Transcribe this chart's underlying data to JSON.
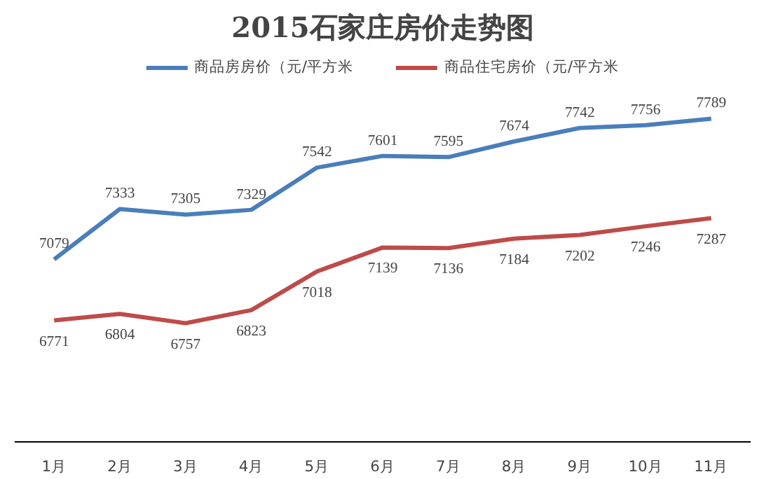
{
  "chart_data": {
    "type": "line",
    "title": "2015石家庄房价走势图",
    "categories": [
      "1月",
      "2月",
      "3月",
      "4月",
      "5月",
      "6月",
      "7月",
      "8月",
      "9月",
      "10月",
      "11月"
    ],
    "series": [
      {
        "name": "商品房房价（元/平方米",
        "color": "#4a7ebb",
        "values": [
          7079,
          7333,
          7305,
          7329,
          7542,
          7601,
          7595,
          7674,
          7742,
          7756,
          7789
        ]
      },
      {
        "name": "商品住宅房价（元/平方米",
        "color": "#be4b48",
        "values": [
          6771,
          6804,
          6757,
          6823,
          7018,
          7139,
          7136,
          7184,
          7202,
          7246,
          7287
        ]
      }
    ],
    "data_labels": true,
    "legend": "top",
    "grid": false,
    "marker": "none",
    "line_style": "solid",
    "tick_labels": "x"
  }
}
